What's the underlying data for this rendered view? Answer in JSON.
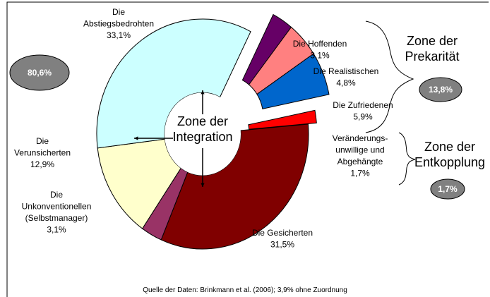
{
  "chart_data": {
    "type": "pie",
    "categories": [
      "Die Hoffenden",
      "Die Realistischen",
      "Die Zufriedenen",
      "Veränderungs-\nunwillige und\nAbgehängte",
      "Die Gesicherten",
      "Die\nUnkonventionellen\n(Selbstmanager)",
      "Die\nVerunsicherten",
      "Die\nAbstiegsbedrohten"
    ],
    "values": [
      3.1,
      4.8,
      5.9,
      1.7,
      31.5,
      3.1,
      12.9,
      33.1
    ],
    "value_labels": [
      "3,1%",
      "4,8%",
      "5,9%",
      "1,7%",
      "31,5%",
      "3,1%",
      "12,9%",
      "33,1%"
    ],
    "colors": [
      "#660066",
      "#ff8080",
      "#0066cc",
      "#ff0000",
      "#800000",
      "#993366",
      "#ffffcc",
      "#ccffff"
    ],
    "zones": [
      {
        "label": "Zone der\nIntegration",
        "value": 80.6,
        "value_label": "80,6%"
      },
      {
        "label": "Zone der\nPrekarität",
        "value": 13.8,
        "value_label": "13,8%"
      },
      {
        "label": "Zone der\nEntkopplung",
        "value": 1.7,
        "value_label": "1,7%"
      }
    ],
    "source": "Quelle der Daten: Brinkmann et al. (2006); 3,9% ohne Zuordnung"
  }
}
